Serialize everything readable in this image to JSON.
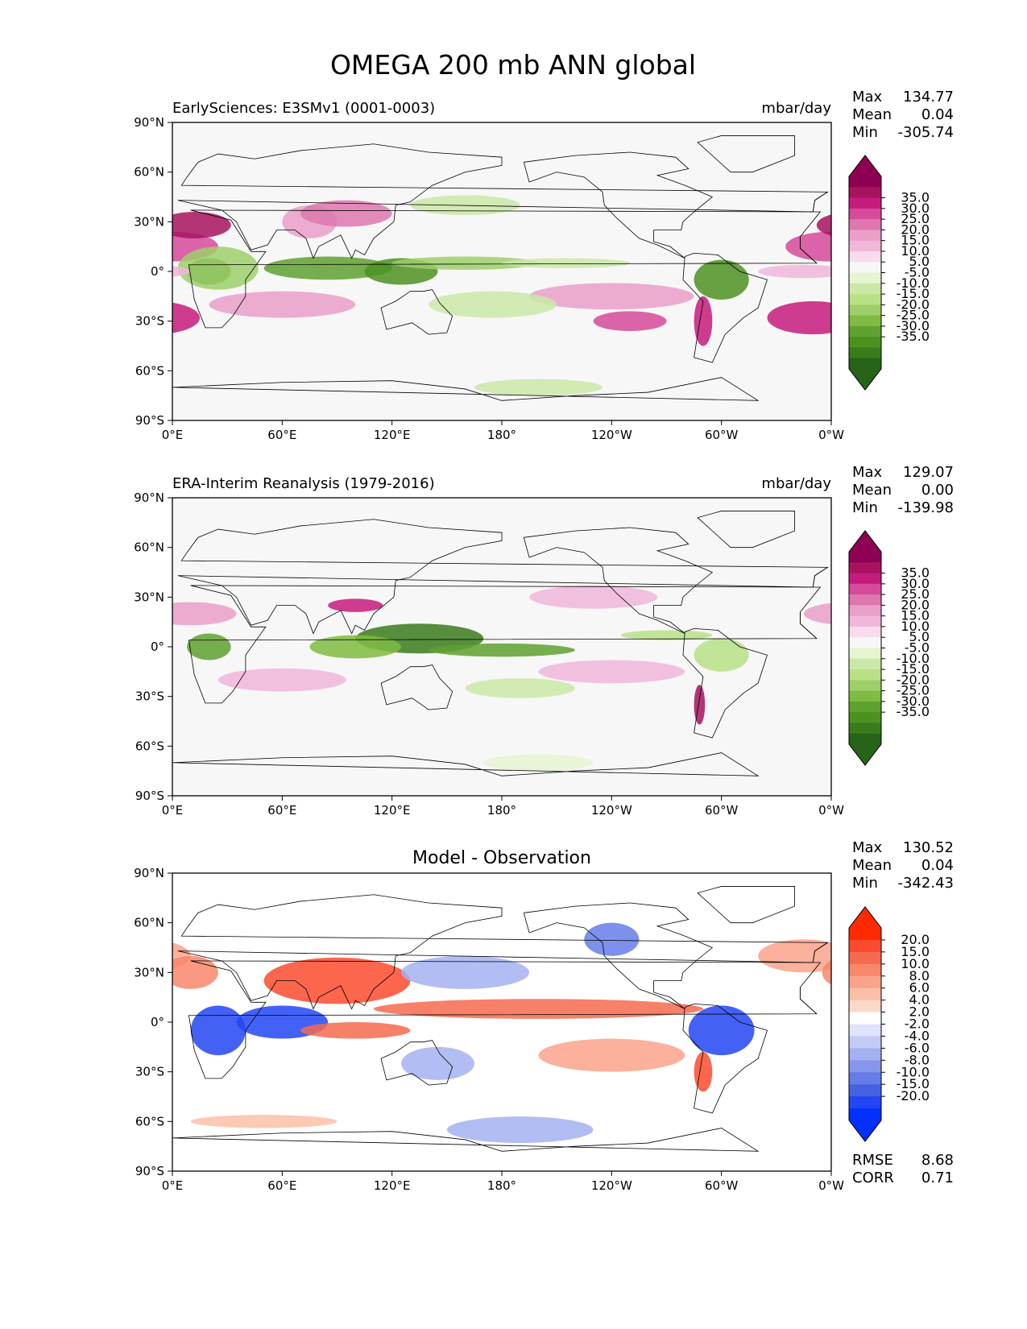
{
  "figure_title": "OMEGA 200 mb ANN global",
  "chart_data": [
    {
      "type": "heatmap",
      "title": "EarlySciences: E3SMv1 (0001-0003)",
      "units": "mbar/day",
      "stats": {
        "max_label": "Max",
        "max": "134.77",
        "mean_label": "Mean",
        "mean": "0.04",
        "min_label": "Min",
        "min": "-305.74"
      },
      "x_ticks": [
        "0°E",
        "60°E",
        "120°E",
        "180°",
        "120°W",
        "60°W",
        "0°W"
      ],
      "y_ticks": [
        "90°N",
        "60°N",
        "30°N",
        "0°",
        "30°S",
        "60°S",
        "90°S"
      ],
      "colorbar": {
        "labels": [
          "35.0",
          "30.0",
          "25.0",
          "20.0",
          "15.0",
          "10.0",
          "5.0",
          "-5.0",
          "-10.0",
          "-15.0",
          "-20.0",
          "-25.0",
          "-30.0",
          "-35.0"
        ],
        "colors": [
          "#8e0152",
          "#a8135f",
          "#c51b7d",
          "#d64a9a",
          "#de77ae",
          "#ea9fc9",
          "#f1b6da",
          "#f8dbec",
          "#f7f7f7",
          "#e6f5d0",
          "#cbe8a8",
          "#b8e186",
          "#9fcf6a",
          "#7fbc41",
          "#5fa131",
          "#4d9221",
          "#3a7b1c",
          "#276419"
        ],
        "top_cap": "#8e0152",
        "bottom_cap": "#276419"
      }
    },
    {
      "type": "heatmap",
      "title": "ERA-Interim Reanalysis (1979-2016)",
      "units": "mbar/day",
      "stats": {
        "max_label": "Max",
        "max": "129.07",
        "mean_label": "Mean",
        "mean": "0.00",
        "min_label": "Min",
        "min": "-139.98"
      },
      "x_ticks": [
        "0°E",
        "60°E",
        "120°E",
        "180°",
        "120°W",
        "60°W",
        "0°W"
      ],
      "y_ticks": [
        "90°N",
        "60°N",
        "30°N",
        "0°",
        "30°S",
        "60°S",
        "90°S"
      ],
      "colorbar": {
        "labels": [
          "35.0",
          "30.0",
          "25.0",
          "20.0",
          "15.0",
          "10.0",
          "5.0",
          "-5.0",
          "-10.0",
          "-15.0",
          "-20.0",
          "-25.0",
          "-30.0",
          "-35.0"
        ],
        "colors": [
          "#8e0152",
          "#a8135f",
          "#c51b7d",
          "#d64a9a",
          "#de77ae",
          "#ea9fc9",
          "#f1b6da",
          "#f8dbec",
          "#f7f7f7",
          "#e6f5d0",
          "#cbe8a8",
          "#b8e186",
          "#9fcf6a",
          "#7fbc41",
          "#5fa131",
          "#4d9221",
          "#3a7b1c",
          "#276419"
        ],
        "top_cap": "#8e0152",
        "bottom_cap": "#276419"
      }
    },
    {
      "type": "heatmap",
      "title": "Model - Observation",
      "units": "",
      "stats": {
        "max_label": "Max",
        "max": "130.52",
        "mean_label": "Mean",
        "mean": "0.04",
        "min_label": "Min",
        "min": "-342.43"
      },
      "metrics": {
        "rmse_label": "RMSE",
        "rmse": "8.68",
        "corr_label": "CORR",
        "corr": "0.71"
      },
      "x_ticks": [
        "0°E",
        "60°E",
        "120°E",
        "180°",
        "120°W",
        "60°W",
        "0°W"
      ],
      "y_ticks": [
        "90°N",
        "60°N",
        "30°N",
        "0°",
        "30°S",
        "60°S",
        "90°S"
      ],
      "colorbar": {
        "labels": [
          "20.0",
          "15.0",
          "10.0",
          "8.0",
          "6.0",
          "4.0",
          "2.0",
          "-2.0",
          "-4.0",
          "-6.0",
          "-8.0",
          "-10.0",
          "-15.0",
          "-20.0"
        ],
        "colors": [
          "#ff2a00",
          "#fa4b2e",
          "#f66a4f",
          "#f8876c",
          "#faa38a",
          "#fbbfa8",
          "#fcd9c8",
          "#ffffff",
          "#dfe3fb",
          "#c2caf6",
          "#a4b1f1",
          "#8596ec",
          "#667ce7",
          "#4662e2",
          "#2246f3",
          "#0430ff"
        ],
        "top_cap": "#ff2a00",
        "bottom_cap": "#0430ff"
      }
    }
  ]
}
